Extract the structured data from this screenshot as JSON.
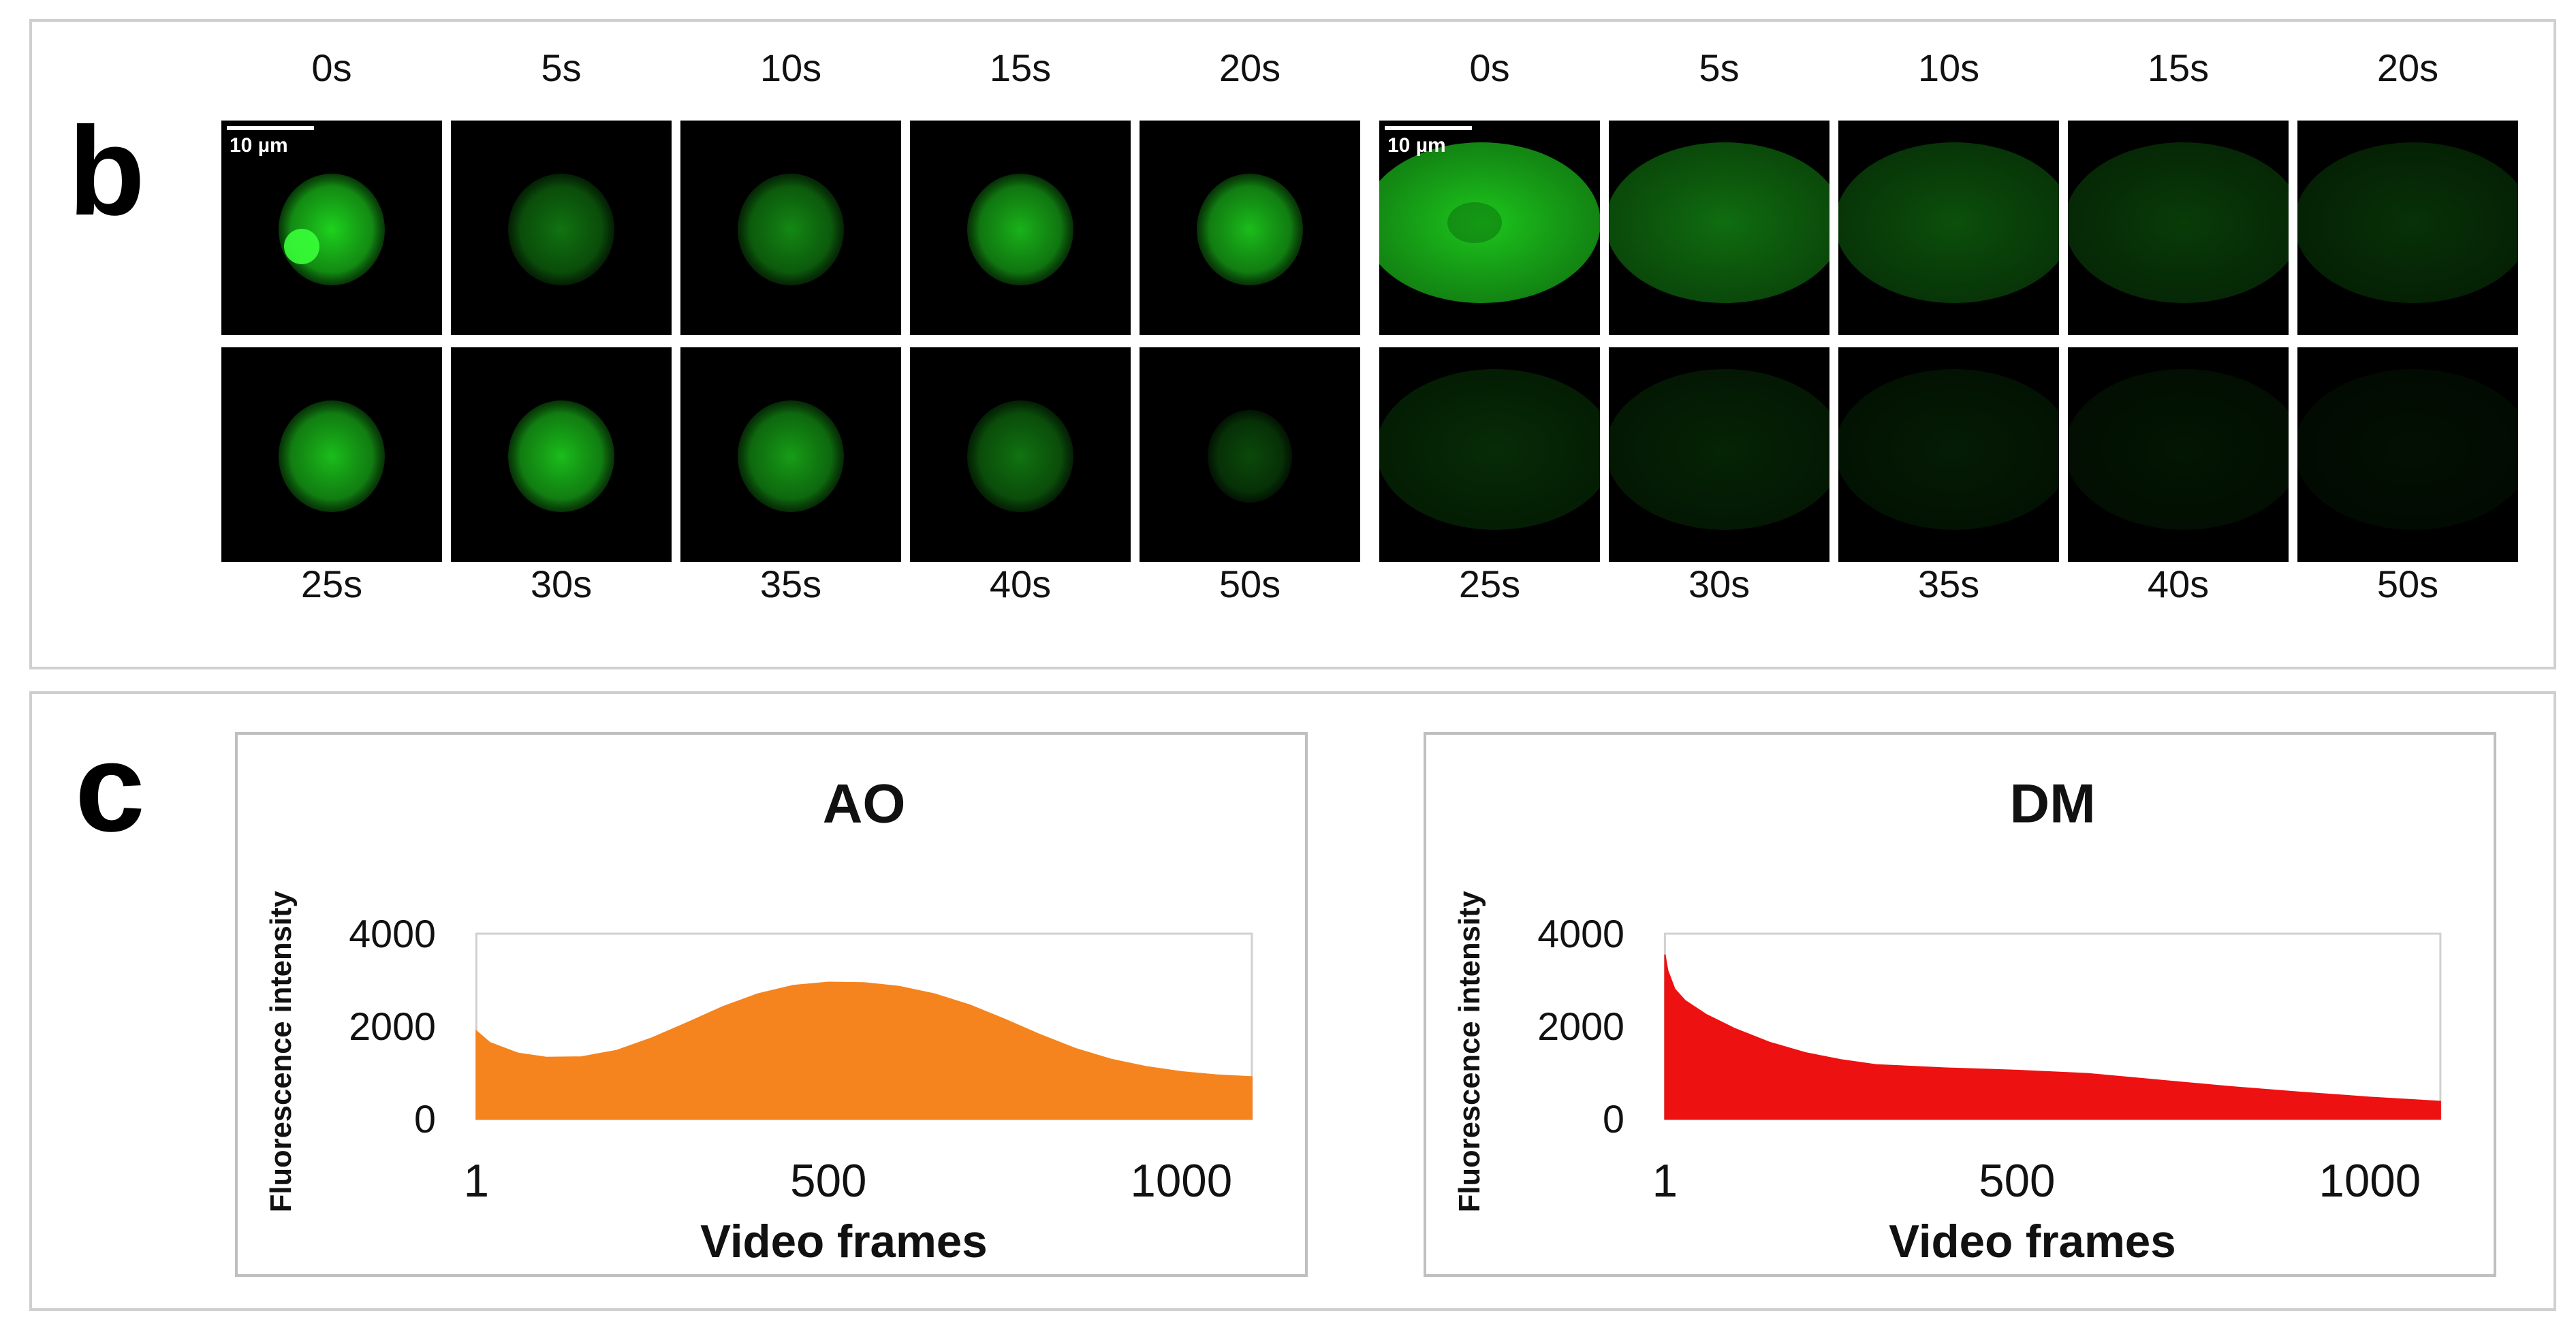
{
  "panel_b": {
    "letter": "b",
    "scale_bar_label": "10 µm",
    "top_times": [
      "0s",
      "5s",
      "10s",
      "15s",
      "20s"
    ],
    "bottom_times": [
      "25s",
      "30s",
      "35s",
      "40s",
      "50s"
    ],
    "fluorescence_color": "#1ed21e",
    "ao_frame_brightness": [
      1.0,
      0.55,
      0.65,
      0.85,
      0.9,
      0.9,
      0.9,
      0.75,
      0.55,
      0.35
    ],
    "dm_frame_brightness": [
      1.0,
      0.55,
      0.4,
      0.3,
      0.25,
      0.22,
      0.18,
      0.14,
      0.11,
      0.08
    ]
  },
  "panel_c": {
    "letter": "c",
    "chart_data": [
      {
        "type": "area",
        "title": "AO",
        "xlabel": "Video frames",
        "ylabel": "Fluorescence intensity",
        "color": "#f5841f",
        "xlim": [
          1,
          1100
        ],
        "ylim": [
          0,
          4000
        ],
        "x_ticks": [
          1,
          500,
          1000
        ],
        "y_ticks": [
          0,
          2000,
          4000
        ],
        "grid": false,
        "x": [
          1,
          20,
          60,
          100,
          150,
          200,
          250,
          300,
          350,
          400,
          450,
          500,
          550,
          600,
          650,
          700,
          750,
          800,
          850,
          900,
          950,
          1000,
          1050,
          1100
        ],
        "y": [
          1900,
          1650,
          1420,
          1330,
          1340,
          1480,
          1750,
          2080,
          2420,
          2700,
          2880,
          2950,
          2940,
          2860,
          2700,
          2460,
          2150,
          1820,
          1520,
          1290,
          1130,
          1020,
          950,
          910
        ]
      },
      {
        "type": "area",
        "title": "DM",
        "xlabel": "Video frames",
        "ylabel": "Fluorescence intensity",
        "color": "#ee1111",
        "xlim": [
          1,
          1100
        ],
        "ylim": [
          0,
          4000
        ],
        "x_ticks": [
          1,
          500,
          1000
        ],
        "y_ticks": [
          0,
          2000,
          4000
        ],
        "grid": false,
        "x": [
          1,
          5,
          15,
          30,
          60,
          100,
          150,
          200,
          250,
          300,
          400,
          500,
          600,
          700,
          800,
          900,
          1000,
          1100
        ],
        "y": [
          3550,
          3200,
          2800,
          2550,
          2250,
          1950,
          1650,
          1430,
          1280,
          1170,
          1100,
          1050,
          980,
          840,
          700,
          580,
          470,
          380
        ]
      }
    ]
  }
}
